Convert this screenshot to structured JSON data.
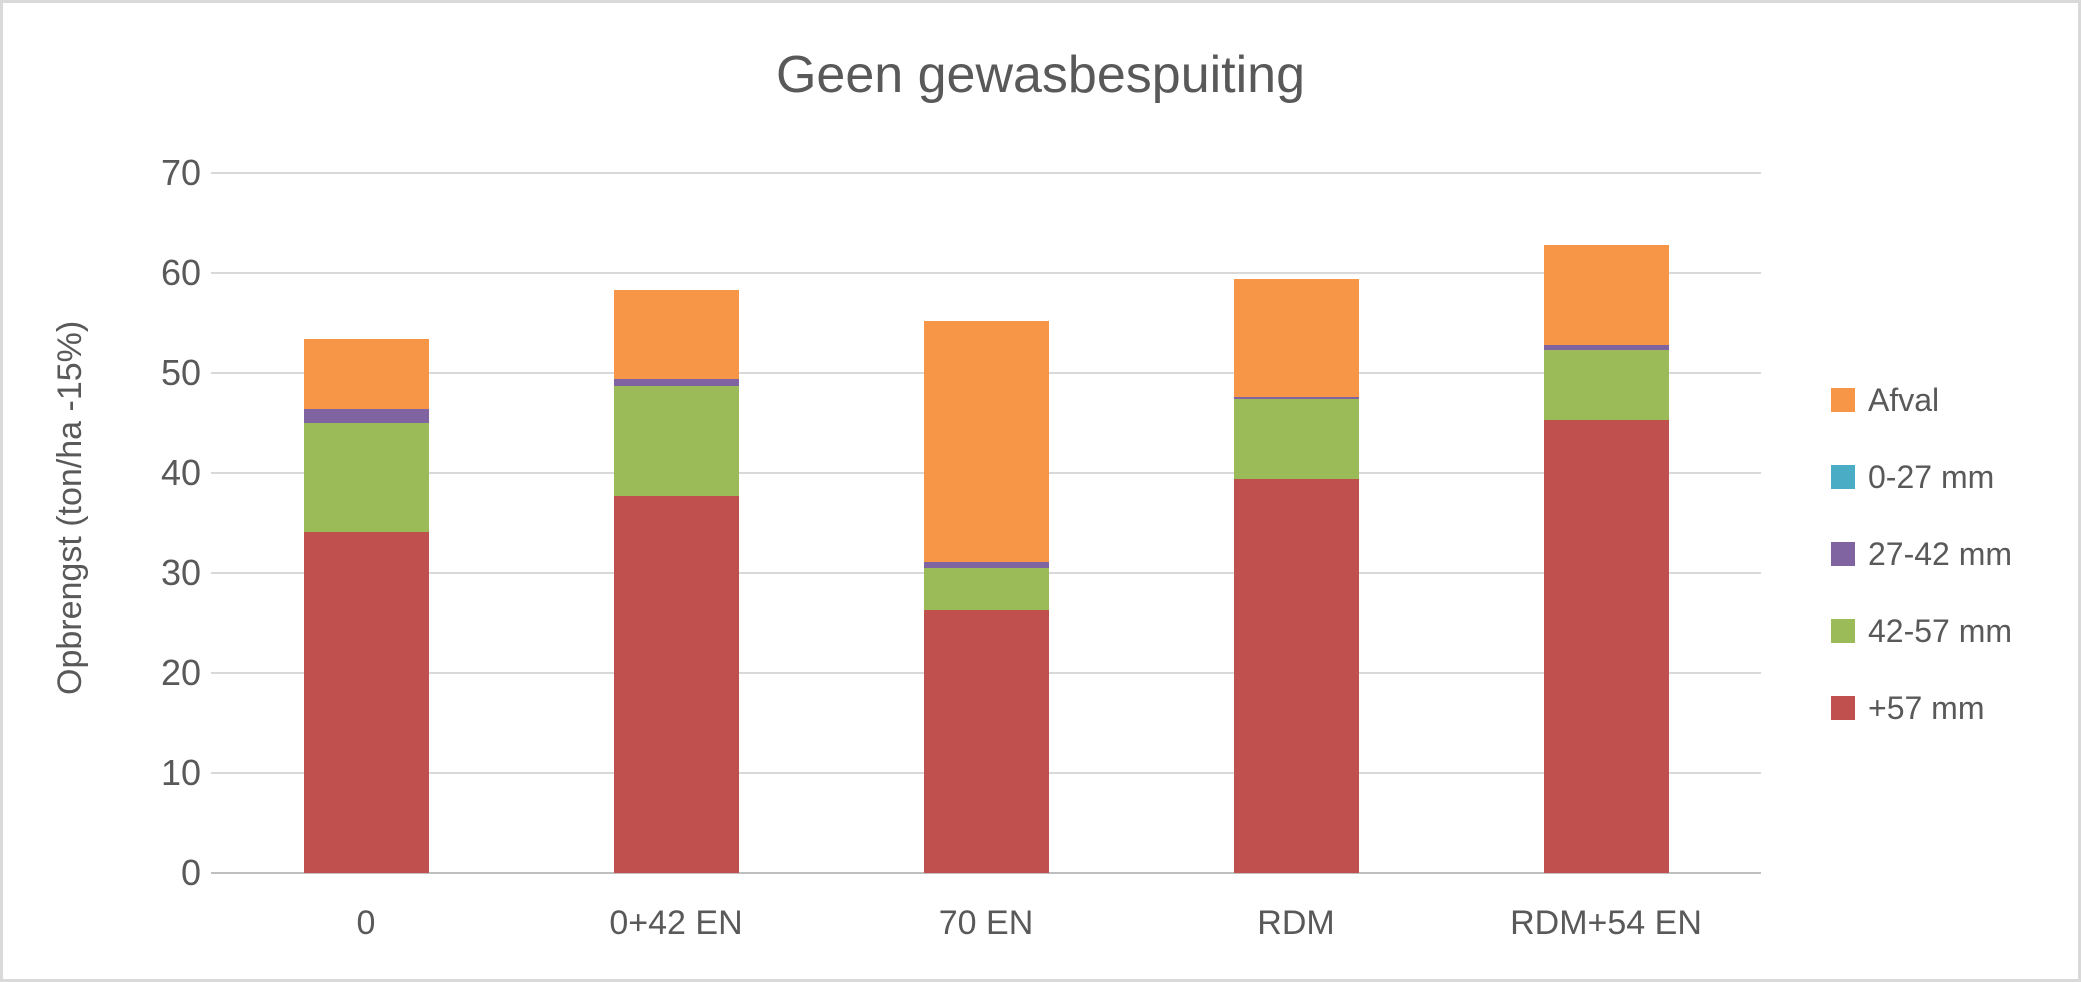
{
  "title": "Geen gewasbespuiting",
  "y_axis": {
    "label": "Opbrengst (ton/ha -15%)",
    "ticks": [
      0,
      10,
      20,
      30,
      40,
      50,
      60,
      70
    ]
  },
  "colors": {
    "text": "#595959",
    "gridline": "#d9d9d9",
    "axis_line": "#bfbfbf",
    "background": "#ffffff",
    "frame_border": "#d9d9d9"
  },
  "chart_data": {
    "type": "bar",
    "stacked": true,
    "title": "Geen gewasbespuiting",
    "xlabel": "",
    "ylabel": "Opbrengst (ton/ha -15%)",
    "ylim": [
      0,
      70
    ],
    "ytick_step": 10,
    "grid": true,
    "legend_position": "right",
    "categories": [
      "0",
      "0+42 EN",
      "70 EN",
      "RDM",
      "RDM+54 EN"
    ],
    "series": [
      {
        "name": "+57 mm",
        "color": "#C0504D",
        "values": [
          34.1,
          37.7,
          26.3,
          39.4,
          45.3
        ]
      },
      {
        "name": "42-57 mm",
        "color": "#9BBB59",
        "values": [
          10.9,
          11.0,
          4.2,
          8.0,
          7.0
        ]
      },
      {
        "name": "27-42 mm",
        "color": "#8064A2",
        "values": [
          1.4,
          0.7,
          0.6,
          0.2,
          0.5
        ]
      },
      {
        "name": "0-27 mm",
        "color": "#4BACC6",
        "values": [
          0,
          0,
          0,
          0,
          0
        ]
      },
      {
        "name": "Afval",
        "color": "#F79646",
        "values": [
          7.0,
          8.9,
          24.1,
          11.8,
          10.0
        ]
      }
    ],
    "totals": [
      53.4,
      58.3,
      55.2,
      59.4,
      62.8
    ],
    "legend_order": [
      "Afval",
      "0-27 mm",
      "27-42 mm",
      "42-57 mm",
      "+57 mm"
    ]
  }
}
